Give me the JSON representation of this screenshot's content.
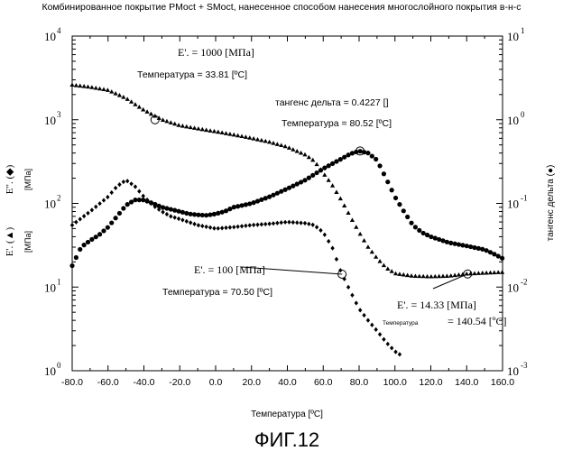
{
  "chart_data": {
    "type": "scatter",
    "title": "Комбинированное покрытие PMoct + SMoct, нанесенное способом нанесения многослойного покрытия в-н-с",
    "xlabel": "Температура [ºC]",
    "xlim": [
      -80,
      160
    ],
    "x_ticks": [
      "-80.0",
      "-60.0",
      "-40.0",
      "-20.0",
      "0.0",
      "20.0",
      "40.0",
      "60.0",
      "80.0",
      "100.0",
      "120.0",
      "140.0",
      "160.0"
    ],
    "x_tick_values": [
      -80,
      -60,
      -40,
      -20,
      0,
      20,
      40,
      60,
      80,
      100,
      120,
      140,
      160
    ],
    "y_left_scale": "log",
    "y_left_lim": [
      1,
      10000
    ],
    "y_left_ticks": [
      {
        "base": "10",
        "exp": "0",
        "value": 1
      },
      {
        "base": "10",
        "exp": "1",
        "value": 10
      },
      {
        "base": "10",
        "exp": "2",
        "value": 100
      },
      {
        "base": "10",
        "exp": "3",
        "value": 1000
      },
      {
        "base": "10",
        "exp": "4",
        "value": 10000
      }
    ],
    "y_left_labels": [
      {
        "symbol": "E\". (◆)",
        "unit": "[МПа]"
      },
      {
        "symbol": "E'. (▲)",
        "unit": "[МПа]"
      }
    ],
    "y_right_scale": "log",
    "y_right_lim": [
      0.001,
      10
    ],
    "y_right_ticks": [
      {
        "base": "10",
        "exp": "1",
        "value": 10
      },
      {
        "base": "10",
        "exp": "0",
        "value": 1
      },
      {
        "base": "10",
        "exp": "-1",
        "value": 0.1
      },
      {
        "base": "10",
        "exp": "-2",
        "value": 0.01
      },
      {
        "base": "10",
        "exp": "-3",
        "value": 0.001
      }
    ],
    "y_right_label": "тангенс дельта (●)",
    "series": [
      {
        "name": "E'",
        "marker": "triangle",
        "axis": "left",
        "x": [
          -80,
          -70,
          -60,
          -50,
          -40,
          -30,
          -20,
          -10,
          0,
          10,
          20,
          30,
          40,
          50,
          55,
          60,
          65,
          70,
          75,
          80,
          85,
          90,
          95,
          100,
          110,
          120,
          130,
          140,
          150,
          160
        ],
        "y": [
          2600,
          2450,
          2250,
          1800,
          1300,
          1000,
          850,
          780,
          720,
          660,
          600,
          540,
          470,
          380,
          320,
          230,
          165,
          110,
          70,
          45,
          30,
          22,
          17,
          14.5,
          13.5,
          13.3,
          13.5,
          14.33,
          14.7,
          15
        ]
      },
      {
        "name": "E\"",
        "marker": "diamond",
        "axis": "left",
        "x": [
          -80,
          -70,
          -60,
          -55,
          -50,
          -45,
          -40,
          -35,
          -30,
          -25,
          -20,
          -10,
          0,
          10,
          20,
          30,
          40,
          50,
          55,
          60,
          65,
          70,
          75,
          80,
          85,
          90,
          95,
          100,
          104
        ],
        "y": [
          55,
          80,
          120,
          160,
          190,
          160,
          120,
          95,
          80,
          70,
          65,
          55,
          50,
          52,
          55,
          57,
          60,
          58,
          55,
          45,
          30,
          15,
          9,
          5.5,
          4,
          3,
          2.2,
          1.7,
          1.5
        ]
      },
      {
        "name": "тангенс дельта",
        "marker": "circle",
        "axis": "right",
        "x": [
          -80,
          -75,
          -70,
          -65,
          -60,
          -55,
          -50,
          -45,
          -40,
          -35,
          -30,
          -25,
          -20,
          -15,
          -10,
          -5,
          0,
          5,
          10,
          20,
          30,
          40,
          50,
          60,
          70,
          75,
          80,
          85,
          90,
          95,
          100,
          105,
          110,
          115,
          120,
          130,
          140,
          150,
          155,
          160
        ],
        "y": [
          0.018,
          0.03,
          0.036,
          0.042,
          0.052,
          0.07,
          0.095,
          0.11,
          0.11,
          0.1,
          0.09,
          0.085,
          0.08,
          0.075,
          0.073,
          0.072,
          0.075,
          0.08,
          0.09,
          0.1,
          0.12,
          0.15,
          0.19,
          0.26,
          0.34,
          0.39,
          0.4227,
          0.4,
          0.33,
          0.2,
          0.12,
          0.08,
          0.055,
          0.045,
          0.04,
          0.034,
          0.031,
          0.028,
          0.025,
          0.022
        ]
      }
    ],
    "annotations": [
      {
        "series": "E'",
        "x": -33.81,
        "y": 1000,
        "value_text": "E'. = 1000 [МПа]",
        "temp_text": "Температура = 33.81 [ºC]"
      },
      {
        "series": "тангенс дельта",
        "x": 80.52,
        "y": 0.4227,
        "value_text": "тангенс дельта = 0.4227 []",
        "temp_text": "Температура = 80.52 [ºC]"
      },
      {
        "series": "E\"",
        "x": 70.5,
        "y": 100,
        "value_text": "E'. = 100 [МПа]",
        "temp_text": "Температура = 70.50 [ºC]"
      },
      {
        "series": "E'",
        "x": 140.54,
        "y": 14.33,
        "value_text": "E'. = 14.33 [МПа]",
        "temp_label": "Температура",
        "temp_value": "= 140.54 [ºC]"
      }
    ],
    "grid": false,
    "figure_caption": "ФИГ.12"
  }
}
